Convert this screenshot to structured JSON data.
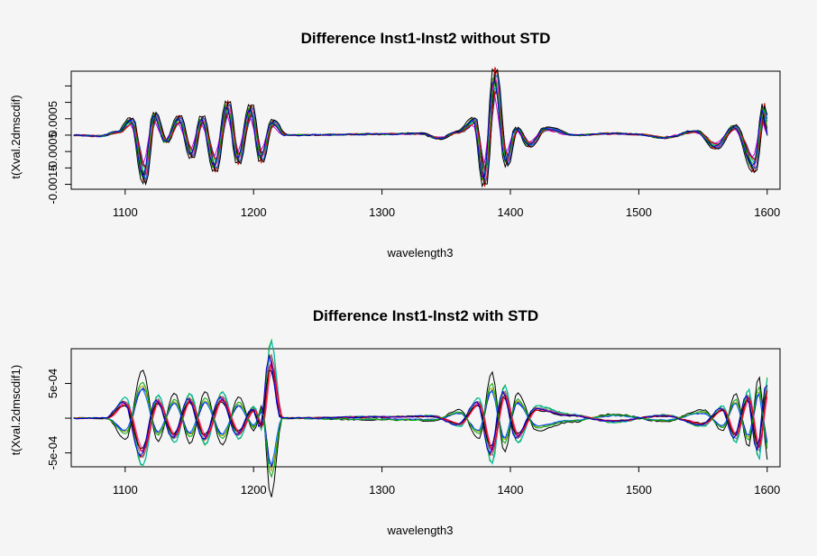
{
  "chart_data": [
    {
      "type": "line",
      "title": "Difference Inst1-Inst2 without STD",
      "xlabel": "wavelength3",
      "ylabel": "t(Xval.2dmscdif)",
      "xlim": [
        1058,
        1610
      ],
      "ylim": [
        -0.00165,
        0.00195
      ],
      "x_ticks": [
        1100,
        1200,
        1300,
        1400,
        1500,
        1600
      ],
      "y_ticks": [
        -0.0015,
        -0.001,
        -0.0005,
        0,
        0.0005,
        0.001,
        0.0015
      ],
      "y_tick_labels": [
        "-0.0015",
        "",
        "-0.0005",
        "",
        "0.0005",
        "",
        ""
      ],
      "series_colors": [
        "#000000",
        "#dd0000",
        "#00aa00",
        "#0000dd",
        "#00bbbb",
        "#cc00cc",
        "#aaaa00",
        "#777777",
        "#ff3399",
        "#0066ff"
      ],
      "grid": false,
      "legend": "none",
      "profile": [
        [
          1060,
          0.0
        ],
        [
          1080,
          -3e-05
        ],
        [
          1095,
          0.0001
        ],
        [
          1105,
          0.00045
        ],
        [
          1115,
          -0.00125
        ],
        [
          1123,
          0.0006
        ],
        [
          1132,
          -0.0002
        ],
        [
          1142,
          0.0005
        ],
        [
          1152,
          -0.0006
        ],
        [
          1160,
          0.0005
        ],
        [
          1170,
          -0.00095
        ],
        [
          1180,
          0.0009
        ],
        [
          1188,
          -0.00075
        ],
        [
          1198,
          0.0008
        ],
        [
          1206,
          -0.0007
        ],
        [
          1215,
          0.0004
        ],
        [
          1225,
          0.0
        ],
        [
          1300,
          3e-05
        ],
        [
          1330,
          5e-05
        ],
        [
          1345,
          -0.0001
        ],
        [
          1360,
          0.0001
        ],
        [
          1372,
          0.00045
        ],
        [
          1380,
          -0.00135
        ],
        [
          1388,
          0.00175
        ],
        [
          1397,
          -0.0008
        ],
        [
          1405,
          0.0002
        ],
        [
          1415,
          -0.0003
        ],
        [
          1428,
          0.0002
        ],
        [
          1450,
          0.0
        ],
        [
          1480,
          5e-05
        ],
        [
          1500,
          2e-05
        ],
        [
          1520,
          -8e-05
        ],
        [
          1545,
          0.00012
        ],
        [
          1560,
          -0.00035
        ],
        [
          1575,
          0.00025
        ],
        [
          1590,
          -0.00095
        ],
        [
          1598,
          0.00085
        ],
        [
          1600,
          0.0
        ]
      ]
    },
    {
      "type": "line",
      "title": "Difference Inst1-Inst2 with STD",
      "xlabel": "wavelength3",
      "ylabel": "t(Xval.2dmscdif1)",
      "xlim": [
        1058,
        1610
      ],
      "ylim": [
        -0.0007,
        0.001
      ],
      "x_ticks": [
        1100,
        1200,
        1300,
        1400,
        1500,
        1600
      ],
      "y_ticks": [
        -0.0005,
        0,
        0.0005
      ],
      "y_tick_labels": [
        "-5e-04",
        "",
        "5e-04"
      ],
      "series_colors": [
        "#000000",
        "#dd0000",
        "#00aa00",
        "#0000dd",
        "#00bbbb",
        "#cc00cc",
        "#aaaa00",
        "#777777",
        "#ff3399",
        "#0066ff"
      ],
      "grid": false,
      "legend": "none",
      "profile": [
        [
          1060,
          0.0
        ],
        [
          1085,
          0.0
        ],
        [
          1100,
          0.00025
        ],
        [
          1113,
          -0.00058
        ],
        [
          1125,
          0.00028
        ],
        [
          1138,
          -0.0003
        ],
        [
          1150,
          0.0003
        ],
        [
          1162,
          -0.00032
        ],
        [
          1175,
          0.00032
        ],
        [
          1188,
          -0.00025
        ],
        [
          1200,
          0.00015
        ],
        [
          1206,
          -0.00015
        ],
        [
          1213,
          0.00095
        ],
        [
          1222,
          0.0
        ],
        [
          1300,
          2e-05
        ],
        [
          1340,
          3e-05
        ],
        [
          1360,
          -0.0001
        ],
        [
          1375,
          0.00025
        ],
        [
          1385,
          -0.00055
        ],
        [
          1395,
          0.0004
        ],
        [
          1405,
          -0.0003
        ],
        [
          1420,
          0.00015
        ],
        [
          1445,
          5e-05
        ],
        [
          1480,
          -5e-05
        ],
        [
          1520,
          4e-05
        ],
        [
          1550,
          -0.0001
        ],
        [
          1565,
          0.00015
        ],
        [
          1575,
          -0.0003
        ],
        [
          1585,
          0.00035
        ],
        [
          1593,
          -0.0005
        ],
        [
          1600,
          0.0005
        ]
      ]
    }
  ]
}
